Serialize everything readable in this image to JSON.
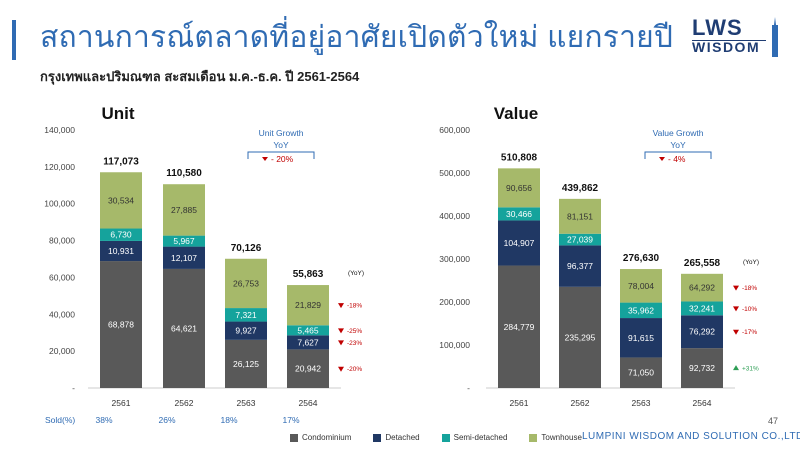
{
  "header": {
    "title": "สถานการณ์ตลาดที่อยู่อาศัยเปิดตัวใหม่ แยกรายปี",
    "subtitle": "กรุงเทพและปริมณฑล สะสมเดือน ม.ค.-ธ.ค. ปี 2561-2564"
  },
  "logo": {
    "top": "LWS",
    "bottom": "WISDOM"
  },
  "footer": {
    "company": "LUMPINI WISDOM AND SOLUTION CO.,LTD.",
    "page": "47"
  },
  "colors": {
    "condominium": "#595959",
    "detached": "#203864",
    "semi_detached": "#15a39c",
    "townhouse": "#a6b96a",
    "accent": "#2f6bb3",
    "down": "#c00000",
    "up": "#2e9e55"
  },
  "legend": [
    {
      "key": "condominium",
      "label": "Condominium"
    },
    {
      "key": "detached",
      "label": "Detached"
    },
    {
      "key": "semi_detached",
      "label": "Semi-detached"
    },
    {
      "key": "townhouse",
      "label": "Townhouse"
    }
  ],
  "chart_data": [
    {
      "type": "bar",
      "stacked": true,
      "title": "Unit",
      "categories": [
        "2561",
        "2562",
        "2563",
        "2564"
      ],
      "ylim": [
        0,
        140000
      ],
      "yticks": [
        "140,000",
        "120,000",
        "100,000",
        "80,000",
        "60,000",
        "40,000",
        "20,000",
        "-"
      ],
      "series": [
        {
          "name": "Condominium",
          "key": "condominium",
          "values": [
            68878,
            64621,
            26125,
            20942
          ],
          "labels": [
            "68,878",
            "64,621",
            "26,125",
            "20,942"
          ]
        },
        {
          "name": "Detached",
          "key": "detached",
          "values": [
            10931,
            12107,
            9927,
            7627
          ],
          "labels": [
            "10,931",
            "12,107",
            "9,927",
            "7,627"
          ]
        },
        {
          "name": "Semi-detached",
          "key": "semi_detached",
          "values": [
            6730,
            5967,
            7321,
            5465
          ],
          "labels": [
            "6,730",
            "5,967",
            "7,321",
            "5,465"
          ]
        },
        {
          "name": "Townhouse",
          "key": "townhouse",
          "values": [
            30534,
            27885,
            26753,
            21829
          ],
          "labels": [
            "30,534",
            "27,885",
            "26,753",
            "21,829"
          ]
        }
      ],
      "totals": [
        117073,
        110580,
        70126,
        55863
      ],
      "total_labels": [
        "117,073",
        "110,580",
        "70,126",
        "55,863"
      ],
      "growth_box": {
        "title": "Unit Growth",
        "subtitle": "YoY",
        "value": "- 20%",
        "direction": "down"
      },
      "yoy_header": "(YoY)",
      "yoy": [
        {
          "series": "townhouse",
          "text": "-18%",
          "direction": "down"
        },
        {
          "series": "semi_detached",
          "text": "-25%",
          "direction": "down"
        },
        {
          "series": "detached",
          "text": "-23%",
          "direction": "down"
        },
        {
          "series": "condominium",
          "text": "-20%",
          "direction": "down"
        }
      ],
      "sold": {
        "label": "Sold(%)",
        "values": [
          "38%",
          "26%",
          "18%",
          "17%"
        ]
      }
    },
    {
      "type": "bar",
      "stacked": true,
      "title": "Value",
      "categories": [
        "2561",
        "2562",
        "2563",
        "2564"
      ],
      "ylim": [
        0,
        600000
      ],
      "yticks": [
        "600,000",
        "500,000",
        "400,000",
        "300,000",
        "200,000",
        "100,000",
        "-"
      ],
      "series": [
        {
          "name": "Condominium",
          "key": "condominium",
          "values": [
            284779,
            235295,
            71050,
            92732
          ],
          "labels": [
            "284,779",
            "235,295",
            "71,050",
            "92,732"
          ]
        },
        {
          "name": "Detached",
          "key": "detached",
          "values": [
            104907,
            96377,
            91615,
            76292
          ],
          "labels": [
            "104,907",
            "96,377",
            "91,615",
            "76,292"
          ]
        },
        {
          "name": "Semi-detached",
          "key": "semi_detached",
          "values": [
            30466,
            27039,
            35962,
            32241
          ],
          "labels": [
            "30,466",
            "27,039",
            "35,962",
            "32,241"
          ]
        },
        {
          "name": "Townhouse",
          "key": "townhouse",
          "values": [
            90656,
            81151,
            78004,
            64292
          ],
          "labels": [
            "90,656",
            "81,151",
            "78,004",
            "64,292"
          ]
        }
      ],
      "totals": [
        510808,
        439862,
        276630,
        265558
      ],
      "total_labels": [
        "510,808",
        "439,862",
        "276,630",
        "265,558"
      ],
      "growth_box": {
        "title": "Value Growth",
        "subtitle": "YoY",
        "value": "- 4%",
        "direction": "down"
      },
      "yoy_header": "(YoY)",
      "yoy": [
        {
          "series": "townhouse",
          "text": "-18%",
          "direction": "down"
        },
        {
          "series": "semi_detached",
          "text": "-10%",
          "direction": "down"
        },
        {
          "series": "detached",
          "text": "-17%",
          "direction": "down"
        },
        {
          "series": "condominium",
          "text": "+31%",
          "direction": "up"
        }
      ]
    }
  ]
}
